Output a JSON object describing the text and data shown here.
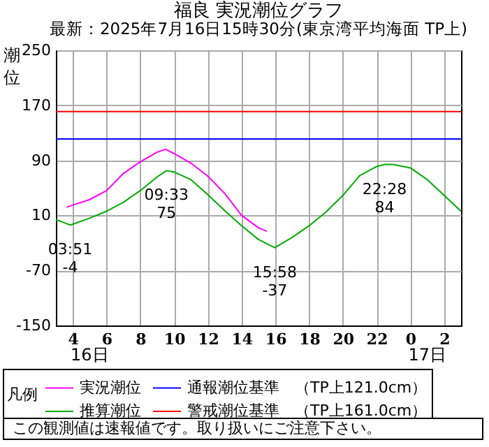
{
  "chart_data": {
    "type": "line",
    "title": "福良 実況潮位グラフ",
    "subtitle": "最新：2025年7月16日15時30分(東京湾平均海面 TP上)",
    "ylabel": "潮位",
    "legend_title": "凡例",
    "xlim": [
      "2025-07-16T03:00",
      "2025-07-17T03:00"
    ],
    "xticks": [
      {
        "value": "2025-07-16T04:00",
        "label": "4"
      },
      {
        "value": "2025-07-16T06:00",
        "label": "6"
      },
      {
        "value": "2025-07-16T08:00",
        "label": "8"
      },
      {
        "value": "2025-07-16T10:00",
        "label": "10"
      },
      {
        "value": "2025-07-16T12:00",
        "label": "12"
      },
      {
        "value": "2025-07-16T14:00",
        "label": "14"
      },
      {
        "value": "2025-07-16T16:00",
        "label": "16"
      },
      {
        "value": "2025-07-16T18:00",
        "label": "18"
      },
      {
        "value": "2025-07-16T20:00",
        "label": "20"
      },
      {
        "value": "2025-07-16T22:00",
        "label": "22"
      },
      {
        "value": "2025-07-17T00:00",
        "label": "0"
      },
      {
        "value": "2025-07-17T02:00",
        "label": "2"
      }
    ],
    "ylim": [
      -150,
      250
    ],
    "yticks": [
      -150,
      -70,
      10,
      90,
      170,
      250
    ],
    "grid": true,
    "legend": "bottom",
    "series": [
      {
        "name": "実況潮位",
        "color": "#ff00ff",
        "x": [
          "2025-07-16T03:38",
          "2025-07-16T04:00",
          "2025-07-16T05:00",
          "2025-07-16T06:00",
          "2025-07-16T07:00",
          "2025-07-16T08:00",
          "2025-07-16T09:00",
          "2025-07-16T09:30",
          "2025-07-16T10:00",
          "2025-07-16T11:00",
          "2025-07-16T12:00",
          "2025-07-16T13:00",
          "2025-07-16T14:00",
          "2025-07-16T15:00",
          "2025-07-16T15:30"
        ],
        "values": [
          22,
          25,
          33,
          46,
          71,
          88,
          102,
          106,
          100,
          86,
          67,
          42,
          10,
          -8,
          -13
        ]
      },
      {
        "name": "推算潮位",
        "color": "#00aa00",
        "x": [
          "2025-07-16T03:00",
          "2025-07-16T03:51",
          "2025-07-16T05:00",
          "2025-07-16T06:00",
          "2025-07-16T07:00",
          "2025-07-16T08:00",
          "2025-07-16T09:00",
          "2025-07-16T09:33",
          "2025-07-16T10:00",
          "2025-07-16T11:00",
          "2025-07-16T12:00",
          "2025-07-16T13:00",
          "2025-07-16T14:00",
          "2025-07-16T15:00",
          "2025-07-16T15:58",
          "2025-07-16T17:00",
          "2025-07-16T18:00",
          "2025-07-16T19:00",
          "2025-07-16T20:00",
          "2025-07-16T21:00",
          "2025-07-16T22:00",
          "2025-07-16T22:28",
          "2025-07-16T23:00",
          "2025-07-17T00:00",
          "2025-07-17T01:00",
          "2025-07-17T02:00",
          "2025-07-17T03:00"
        ],
        "values": [
          4,
          -4,
          6,
          16,
          29,
          46,
          66,
          75,
          73,
          62,
          40,
          17,
          -5,
          -25,
          -37,
          -22,
          -5,
          15,
          39,
          68,
          81,
          84,
          84,
          79,
          62,
          39,
          16
        ]
      }
    ],
    "ref_lines": [
      {
        "axis": "y",
        "value": 121,
        "label": "通報潮位基準　（TP上121.0cm）",
        "color": "#0000ff"
      },
      {
        "axis": "y",
        "value": 161,
        "label": "警戒潮位基準　（TP上161.0cm）",
        "color": "#ff0000"
      }
    ],
    "annotations": [
      {
        "text": "03:51\n-4",
        "x": "2025-07-16T03:51",
        "y": -4
      },
      {
        "text": "09:33\n75",
        "x": "2025-07-16T09:33",
        "y": 75
      },
      {
        "text": "15:58\n-37",
        "x": "2025-07-16T15:58",
        "y": -37
      },
      {
        "text": "22:28\n84",
        "x": "2025-07-16T22:28",
        "y": 84
      },
      "16日",
      "17日",
      "この観測値は速報値です。取り扱いにご注意下さい。"
    ]
  }
}
